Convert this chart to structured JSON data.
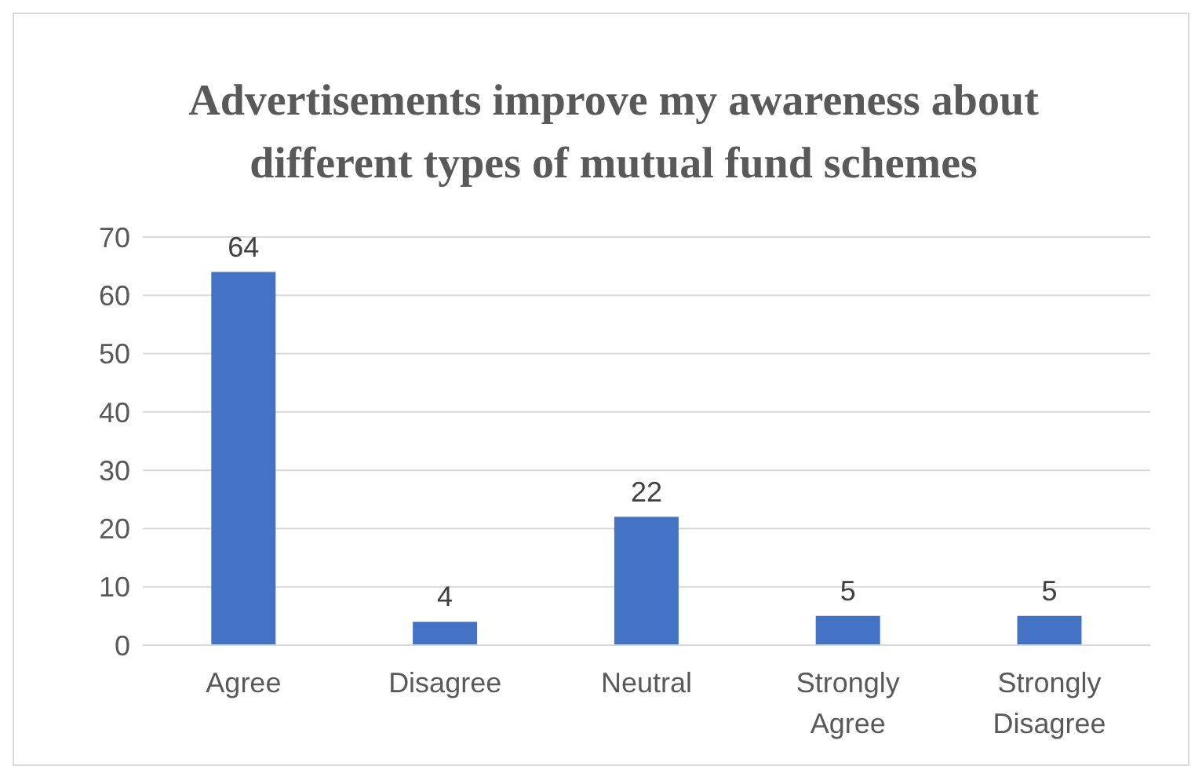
{
  "chart_data": {
    "type": "bar",
    "title": "Advertisements improve my awareness about different types of mutual fund schemes",
    "categories": [
      "Agree",
      "Disagree",
      "Neutral",
      "Strongly Agree",
      "Strongly Disagree"
    ],
    "values": [
      64,
      4,
      22,
      5,
      5
    ],
    "color": "#4472c4",
    "ylim": [
      0,
      70
    ],
    "yticks": [
      0,
      10,
      20,
      30,
      40,
      50,
      60,
      70
    ],
    "grid": "y",
    "data_labels": true
  }
}
